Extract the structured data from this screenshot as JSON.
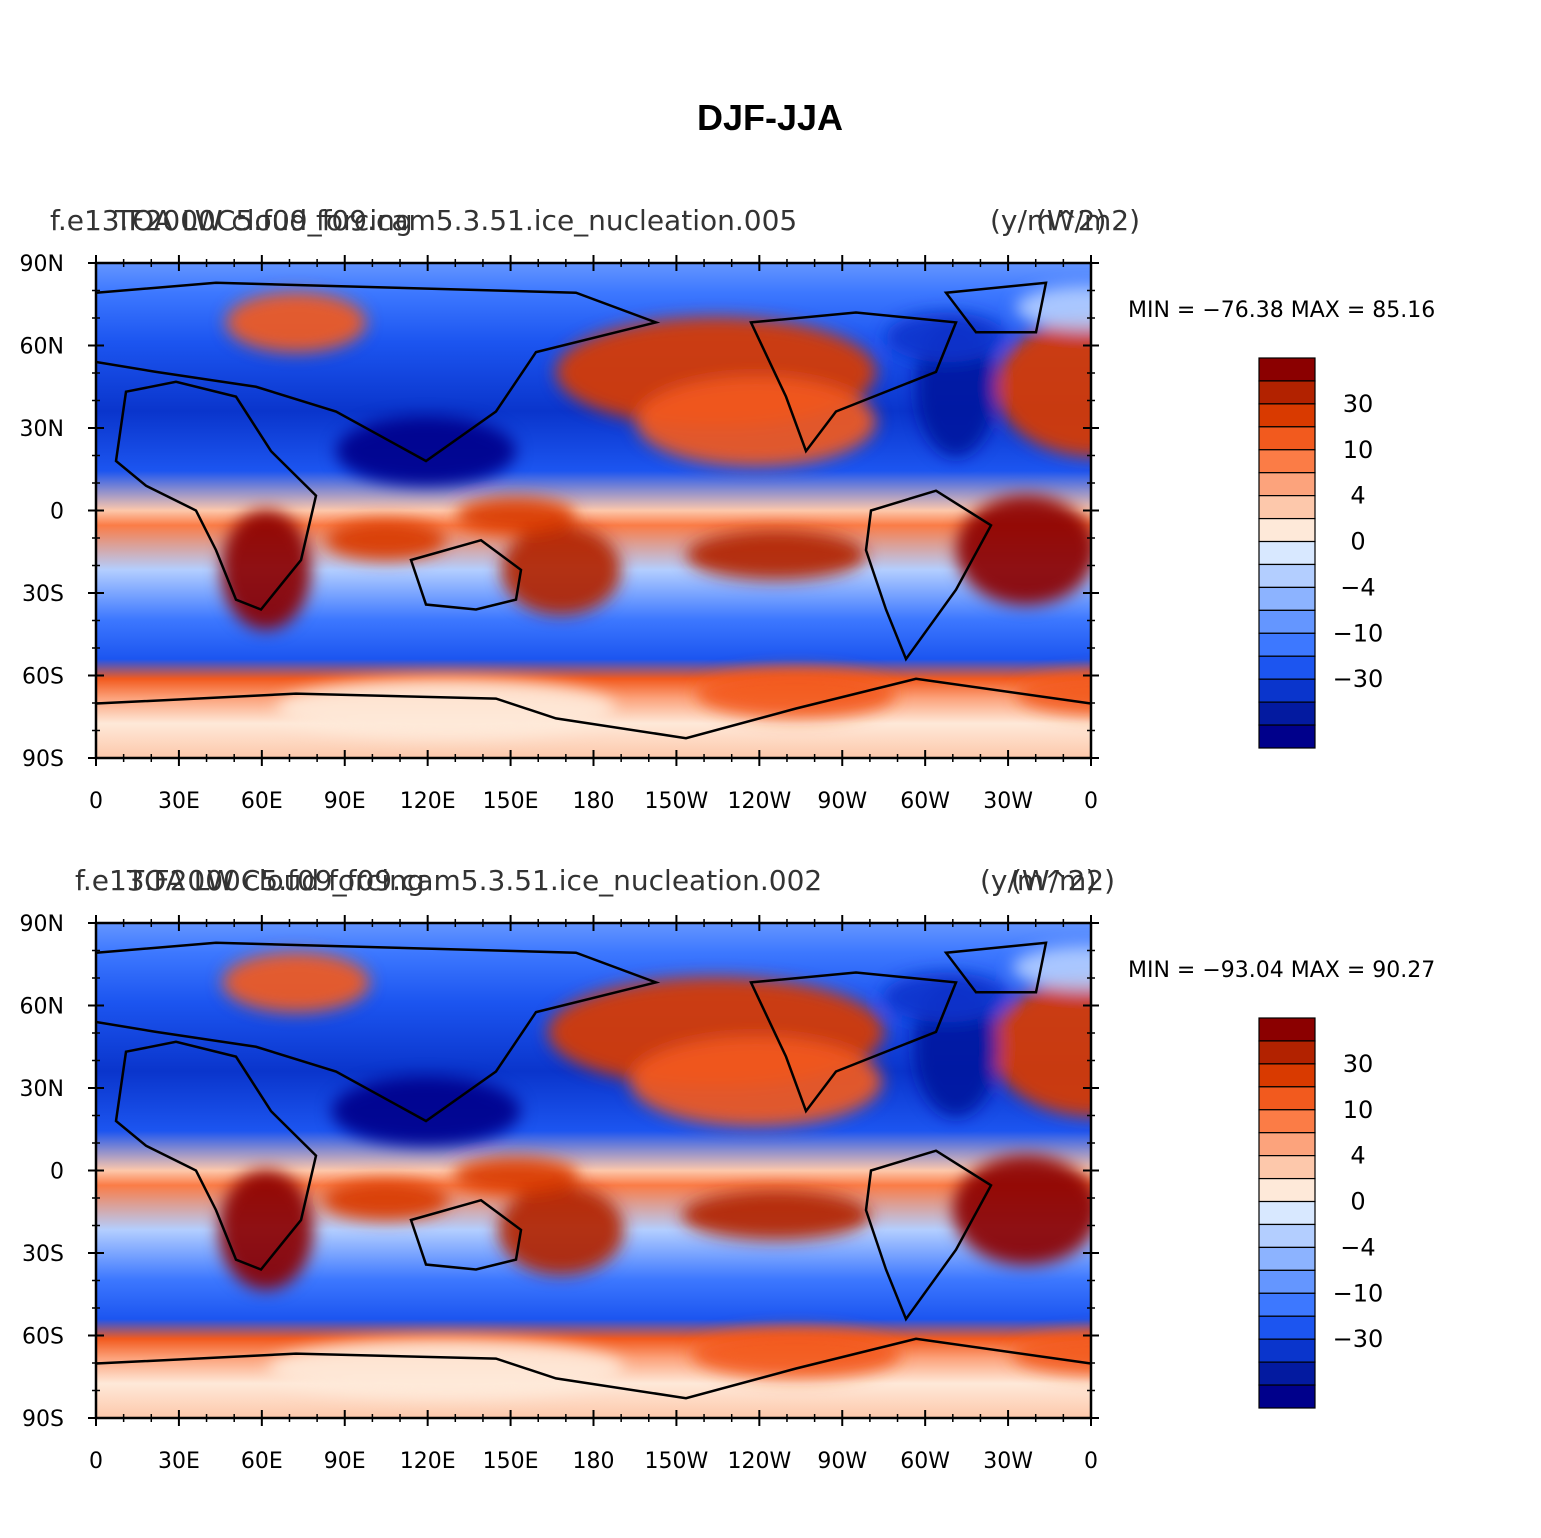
{
  "figure": {
    "main_title": "DJF-JJA",
    "lat_ticks": [
      "90N",
      "60N",
      "30N",
      "0",
      "30S",
      "60S",
      "90S"
    ],
    "lon_ticks": [
      "0",
      "30E",
      "60E",
      "90E",
      "120E",
      "150E",
      "180",
      "150W",
      "120W",
      "90W",
      "60W",
      "30W",
      "0"
    ],
    "legend": {
      "colors": [
        "#8b0000",
        "#b22200",
        "#d93a00",
        "#f25a1e",
        "#fb7c46",
        "#fca37c",
        "#fdc8ab",
        "#fee9d9",
        "#d8e8ff",
        "#b3ceff",
        "#8cb3ff",
        "#6496ff",
        "#3d78ff",
        "#1c55f0",
        "#0a35cc",
        "#031aa0",
        "#00008b"
      ],
      "labels": [
        "30",
        "10",
        "4",
        "0",
        "−4",
        "−10",
        "−30"
      ]
    }
  },
  "panels": [
    {
      "left_title": "f.e13.F2000C5.f09_f09.cam5.3.51.ice_nucleation.005",
      "center_title": "TOA LW cloud forcing",
      "units": "(W/m2)",
      "units_overlay": "(y/m^2)",
      "minmax": "MIN = −76.38  MAX =   85.16"
    },
    {
      "left_title": "f.e13.F2000C5.f09_f09.cam5.3.51.ice_nucleation.002",
      "center_title": "TOA LW cloud forcing",
      "units": "(W/m2)",
      "units_overlay": "(y/m^2)",
      "minmax": "MIN = −93.04  MAX =   90.27"
    }
  ]
}
